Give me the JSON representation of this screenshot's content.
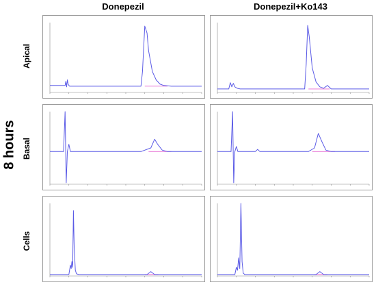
{
  "figure": {
    "side_label": "8 hours",
    "columns": [
      "Donepezil",
      "Donepezil+Ko143"
    ],
    "rows": [
      "Apical",
      "Basal",
      "Cells"
    ]
  },
  "colors": {
    "trace": "#5a5ae6",
    "baseline": "#e66ad2",
    "axis": "#888888",
    "frame": "#9a9a9a"
  },
  "chart_data": [
    {
      "type": "line",
      "panel": "apical-donepezil",
      "title": "",
      "xlim": [
        0,
        20
      ],
      "ylim": [
        0,
        1
      ],
      "series": [
        {
          "x": [
            0.0,
            2.0,
            2.1,
            2.2,
            2.3,
            2.4,
            2.5,
            2.6,
            3.0,
            10.0,
            12.0,
            12.2,
            12.5,
            12.8,
            13.0,
            13.5,
            14.0,
            14.5,
            15.0,
            16.0,
            20.0
          ],
          "y": [
            0.1,
            0.1,
            0.16,
            0.08,
            0.18,
            0.12,
            0.1,
            0.09,
            0.09,
            0.09,
            0.09,
            0.3,
            0.95,
            0.85,
            0.6,
            0.3,
            0.18,
            0.12,
            0.1,
            0.09,
            0.09
          ]
        }
      ],
      "baseline": [
        [
          12.5,
          0.09
        ],
        [
          15.5,
          0.09
        ]
      ]
    },
    {
      "type": "line",
      "panel": "apical-ko143",
      "title": "",
      "xlim": [
        0,
        20
      ],
      "ylim": [
        0,
        1
      ],
      "series": [
        {
          "x": [
            0.0,
            1.5,
            1.7,
            1.9,
            2.1,
            2.3,
            2.6,
            3.0,
            10.0,
            11.5,
            11.7,
            11.9,
            12.1,
            12.5,
            13.0,
            13.5,
            14.0,
            14.5,
            15.0,
            20.0
          ],
          "y": [
            0.05,
            0.05,
            0.14,
            0.08,
            0.13,
            0.08,
            0.06,
            0.05,
            0.05,
            0.05,
            0.4,
            0.96,
            0.8,
            0.35,
            0.15,
            0.08,
            0.06,
            0.1,
            0.05,
            0.05
          ]
        }
      ],
      "baseline": [
        [
          12.0,
          0.05
        ],
        [
          14.8,
          0.05
        ]
      ]
    },
    {
      "type": "line",
      "panel": "basal-donepezil",
      "title": "",
      "xlim": [
        0,
        20
      ],
      "ylim": [
        0,
        1
      ],
      "series": [
        {
          "x": [
            0.0,
            1.8,
            2.0,
            2.15,
            2.3,
            2.5,
            2.7,
            2.9,
            3.2,
            12.0,
            13.3,
            13.8,
            14.2,
            14.8,
            15.5,
            20.0
          ],
          "y": [
            0.45,
            0.45,
            1.0,
            0.02,
            0.45,
            0.55,
            0.45,
            0.45,
            0.45,
            0.45,
            0.5,
            0.62,
            0.55,
            0.47,
            0.45,
            0.45
          ]
        }
      ],
      "baseline": [
        [
          13.0,
          0.45
        ],
        [
          16.0,
          0.45
        ]
      ]
    },
    {
      "type": "line",
      "panel": "basal-ko143",
      "title": "",
      "xlim": [
        0,
        20
      ],
      "ylim": [
        0,
        1
      ],
      "series": [
        {
          "x": [
            0.0,
            1.8,
            2.0,
            2.15,
            2.3,
            2.5,
            2.7,
            2.9,
            3.2,
            5.0,
            5.3,
            5.6,
            12.0,
            12.8,
            13.3,
            13.8,
            14.3,
            15.0,
            20.0
          ],
          "y": [
            0.45,
            0.45,
            1.0,
            0.02,
            0.45,
            0.52,
            0.45,
            0.45,
            0.45,
            0.45,
            0.48,
            0.45,
            0.45,
            0.5,
            0.7,
            0.58,
            0.47,
            0.45,
            0.45
          ]
        }
      ],
      "baseline": [
        [
          12.5,
          0.45
        ],
        [
          15.5,
          0.45
        ]
      ]
    },
    {
      "type": "line",
      "panel": "cells-donepezil",
      "title": "",
      "xlim": [
        0,
        20
      ],
      "ylim": [
        0,
        1
      ],
      "series": [
        {
          "x": [
            0.0,
            2.5,
            2.7,
            2.8,
            2.9,
            3.0,
            3.1,
            3.2,
            3.35,
            3.5,
            3.8,
            4.5,
            12.8,
            13.3,
            13.8,
            20.0
          ],
          "y": [
            0.02,
            0.02,
            0.15,
            0.1,
            0.2,
            0.12,
            0.9,
            0.4,
            0.08,
            0.03,
            0.02,
            0.02,
            0.02,
            0.06,
            0.02,
            0.02
          ]
        }
      ],
      "baseline": [
        [
          12.5,
          0.02
        ],
        [
          14.3,
          0.02
        ]
      ]
    },
    {
      "type": "line",
      "panel": "cells-ko143",
      "title": "",
      "xlim": [
        0,
        20
      ],
      "ylim": [
        0,
        1
      ],
      "series": [
        {
          "x": [
            0.0,
            2.3,
            2.5,
            2.65,
            2.8,
            2.95,
            3.1,
            3.25,
            3.4,
            3.6,
            4.3,
            13.0,
            13.5,
            14.0,
            20.0
          ],
          "y": [
            0.02,
            0.02,
            0.12,
            0.08,
            0.25,
            0.1,
            1.0,
            0.2,
            0.04,
            0.02,
            0.02,
            0.02,
            0.06,
            0.02,
            0.02
          ]
        }
      ],
      "baseline": [
        [
          12.8,
          0.02
        ],
        [
          14.5,
          0.02
        ]
      ]
    }
  ]
}
